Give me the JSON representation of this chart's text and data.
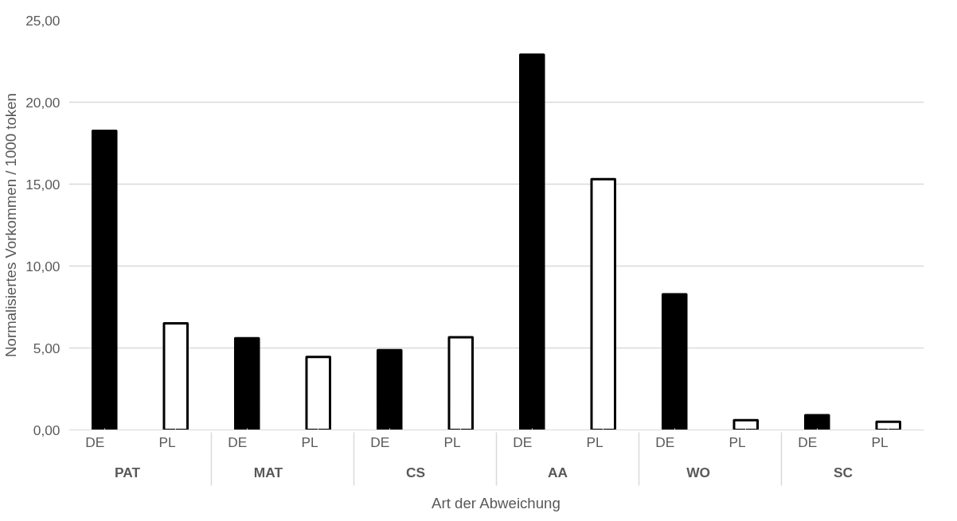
{
  "chart_data": {
    "type": "bar",
    "xlabel": "Art der Abweichung",
    "ylabel": "Normalisiertes Vorkommen / 1000 token",
    "categories": [
      "PAT",
      "MAT",
      "CS",
      "AA",
      "WO",
      "SC"
    ],
    "series": [
      {
        "name": "DE",
        "color": "#000000",
        "values": [
          18.25,
          5.6,
          4.87,
          22.9,
          8.28,
          0.9
        ]
      },
      {
        "name": "PL",
        "color": "#ffffff",
        "values": [
          6.5,
          4.45,
          5.66,
          15.3,
          0.6,
          0.5
        ]
      }
    ],
    "ylim": [
      0,
      25
    ],
    "yticks": [
      {
        "value": 0,
        "label": "0,00"
      },
      {
        "value": 5,
        "label": "5,00"
      },
      {
        "value": 10,
        "label": "10,00"
      },
      {
        "value": 15,
        "label": "15,00"
      },
      {
        "value": 20,
        "label": "20,00"
      },
      {
        "value": 25,
        "label": "25,00"
      }
    ],
    "grid": "y"
  }
}
